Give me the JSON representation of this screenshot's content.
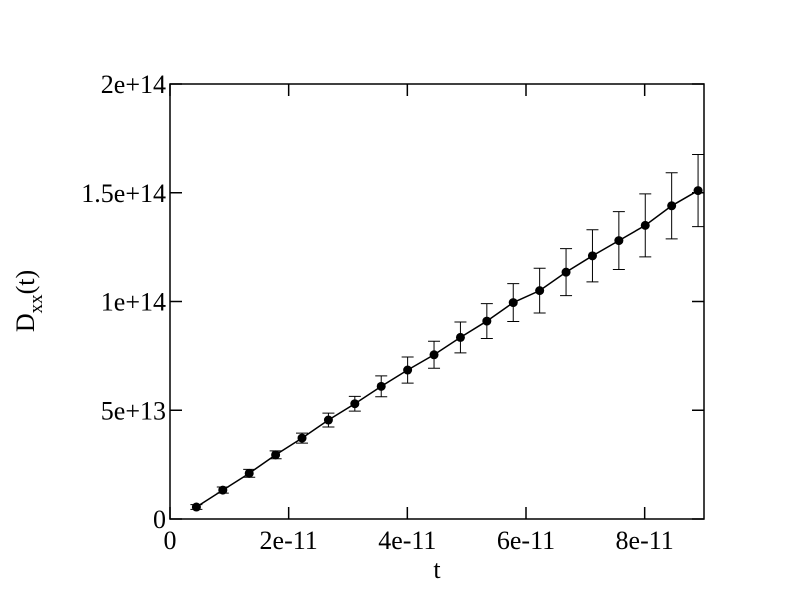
{
  "chart_data": {
    "type": "errorbar-line",
    "xlabel": "t",
    "ylabel": [
      "D",
      "xx",
      "(t)"
    ],
    "x": [
      4.45e-12,
      8.9e-12,
      1.335e-11,
      1.78e-11,
      2.225e-11,
      2.67e-11,
      3.115e-11,
      3.56e-11,
      4.005e-11,
      4.45e-11,
      4.895e-11,
      5.34e-11,
      5.785e-11,
      6.23e-11,
      6.675e-11,
      7.12e-11,
      7.565e-11,
      8.01e-11,
      8.455e-11,
      8.9e-11
    ],
    "series": [
      {
        "color": "#000000",
        "values": [
          5500000000000.0,
          13300000000000.0,
          21000000000000.0,
          29500000000000.0,
          37200000000000.0,
          45500000000000.0,
          53000000000000.0,
          61000000000000.0,
          68500000000000.0,
          75500000000000.0,
          83500000000000.0,
          91000000000000.0,
          99500000000000.0,
          105000000000000.0,
          113500000000000.0,
          121000000000000.0,
          128000000000000.0,
          135000000000000.0,
          144000000000000.0,
          151000000000000.0
        ],
        "errors": [
          1100000000000.0,
          1400000000000.0,
          1800000000000.0,
          1800000000000.0,
          2300000000000.0,
          3200000000000.0,
          3400000000000.0,
          4800000000000.0,
          6000000000000.0,
          6200000000000.0,
          7100000000000.0,
          8000000000000.0,
          8700000000000.0,
          10300000000000.0,
          10800000000000.0,
          12000000000000.0,
          13300000000000.0,
          14500000000000.0,
          15200000000000.0,
          16600000000000.0
        ]
      }
    ],
    "xlim": [
      0,
      9e-11
    ],
    "ylim": [
      0,
      200000000000000.0
    ],
    "xticks": [
      0,
      {
        "value": 2e-11,
        "label": "2e-11"
      },
      {
        "value": 4e-11,
        "label": "4e-11"
      },
      {
        "value": 6e-11,
        "label": "6e-11"
      },
      {
        "value": 8e-11,
        "label": "8e-11"
      }
    ],
    "yticks": [
      0,
      {
        "value": 50000000000000.0,
        "label": "5e+13"
      },
      {
        "value": 100000000000000.0,
        "label": "1e+14"
      },
      {
        "value": 150000000000000.0,
        "label": "1.5e+14"
      },
      {
        "value": 200000000000000.0,
        "label": "2e+14"
      }
    ],
    "grid": false
  }
}
